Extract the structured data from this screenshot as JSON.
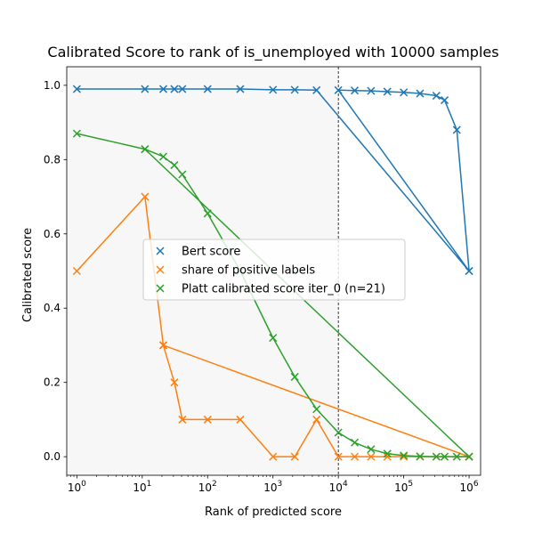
{
  "chart_data": {
    "type": "line",
    "title": "Calibrated Score to rank of is_unemployed with 10000 samples",
    "xlabel": "Rank of predicted score",
    "ylabel": "Calibrated score",
    "xscale": "log",
    "xlim": [
      0.7,
      1500000
    ],
    "ylim": [
      -0.05,
      1.05
    ],
    "x_ticks": [
      1,
      10,
      100,
      1000,
      10000,
      100000,
      1000000
    ],
    "x_tick_labels": [
      [
        "10",
        "0"
      ],
      [
        "10",
        "1"
      ],
      [
        "10",
        "2"
      ],
      [
        "10",
        "3"
      ],
      [
        "10",
        "4"
      ],
      [
        "10",
        "5"
      ],
      [
        "10",
        "6"
      ]
    ],
    "y_ticks": [
      0.0,
      0.2,
      0.4,
      0.6,
      0.8,
      1.0
    ],
    "y_tick_labels": [
      "0.0",
      "0.2",
      "0.4",
      "0.6",
      "0.8",
      "1.0"
    ],
    "shaded_region_x": [
      0.7,
      10000
    ],
    "vline_x": 10000,
    "legend_position": "center-left",
    "series": [
      {
        "name": "Bert score",
        "color": "#1f77b4",
        "marker": "x",
        "points": [
          [
            1,
            0.99
          ],
          [
            11,
            0.99
          ],
          [
            21,
            0.99
          ],
          [
            31,
            0.99
          ],
          [
            41,
            0.99
          ],
          [
            100,
            0.99
          ],
          [
            316,
            0.99
          ],
          [
            1000,
            0.988
          ],
          [
            2154,
            0.988
          ],
          [
            4642,
            0.987
          ],
          [
            1000000,
            0.5
          ],
          [
            10000,
            0.987
          ],
          [
            17783,
            0.986
          ],
          [
            31623,
            0.985
          ],
          [
            56234,
            0.983
          ],
          [
            100000,
            0.981
          ],
          [
            177828,
            0.978
          ],
          [
            316228,
            0.972
          ],
          [
            421697,
            0.96
          ],
          [
            649382,
            0.88
          ],
          [
            1000000,
            0.5
          ]
        ]
      },
      {
        "name": "share of positive labels",
        "color": "#ff7f0e",
        "marker": "x",
        "points": [
          [
            1,
            0.5
          ],
          [
            11,
            0.7
          ],
          [
            21,
            0.3
          ],
          [
            31,
            0.2
          ],
          [
            41,
            0.1
          ],
          [
            100,
            0.1
          ],
          [
            316,
            0.1
          ],
          [
            1000,
            0.0
          ],
          [
            2154,
            0.0
          ],
          [
            4642,
            0.1
          ],
          [
            10000,
            0.0
          ],
          [
            17783,
            0.0
          ],
          [
            31623,
            0.0
          ],
          [
            56234,
            0.0
          ],
          [
            100000,
            0.0
          ],
          [
            177828,
            0.0
          ],
          [
            316228,
            0.0
          ],
          [
            421697,
            0.0
          ],
          [
            649382,
            0.0
          ],
          [
            1000000,
            0.0
          ],
          [
            21,
            0.3
          ],
          [
            1000000,
            0.0
          ]
        ]
      },
      {
        "name": "Platt calibrated score iter_0 (n=21)",
        "color": "#2ca02c",
        "marker": "x",
        "points": [
          [
            1,
            0.87
          ],
          [
            11,
            0.828
          ],
          [
            21,
            0.808
          ],
          [
            31,
            0.785
          ],
          [
            41,
            0.76
          ],
          [
            100,
            0.655
          ],
          [
            316,
            0.5
          ],
          [
            1000,
            0.32
          ],
          [
            2154,
            0.215
          ],
          [
            4642,
            0.128
          ],
          [
            10000,
            0.065
          ],
          [
            17783,
            0.038
          ],
          [
            31623,
            0.02
          ],
          [
            56234,
            0.008
          ],
          [
            100000,
            0.003
          ],
          [
            177828,
            0.001
          ],
          [
            316228,
            0.0
          ],
          [
            421697,
            0.0
          ],
          [
            649382,
            0.0
          ],
          [
            1000000,
            0.0
          ],
          [
            11,
            0.828
          ],
          [
            1000000,
            0.0
          ]
        ]
      }
    ]
  }
}
